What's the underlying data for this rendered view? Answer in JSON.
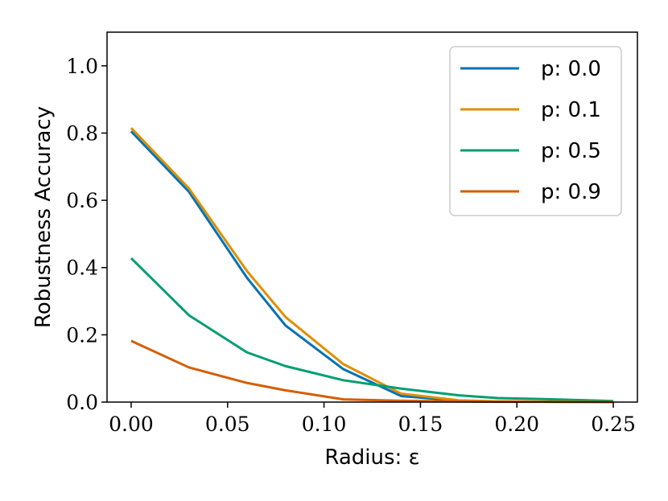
{
  "chart_data": {
    "type": "line",
    "title": "",
    "xlabel": "Radius: ε",
    "ylabel": "Robustness Accuracy",
    "xlim": [
      -0.0125,
      0.2625
    ],
    "ylim": [
      0.0,
      1.1
    ],
    "xticks": [
      0.0,
      0.05,
      0.1,
      0.15,
      0.2,
      0.25
    ],
    "xtick_labels": [
      "0.00",
      "0.05",
      "0.10",
      "0.15",
      "0.20",
      "0.25"
    ],
    "yticks": [
      0.0,
      0.2,
      0.4,
      0.6,
      0.8,
      1.0
    ],
    "ytick_labels": [
      "0.0",
      "0.2",
      "0.4",
      "0.6",
      "0.8",
      "1.0"
    ],
    "grid": false,
    "legend": "top-right",
    "x": [
      0.0,
      0.03,
      0.06,
      0.08,
      0.11,
      0.14,
      0.17,
      0.19,
      0.22,
      0.25
    ],
    "series": [
      {
        "name": "p: 0.0",
        "color": "#0173b2",
        "values": [
          0.805,
          0.625,
          0.37,
          0.228,
          0.098,
          0.018,
          0.004,
          0.002,
          0.001,
          0.001
        ]
      },
      {
        "name": "p: 0.1",
        "color": "#de8f05",
        "values": [
          0.815,
          0.635,
          0.39,
          0.253,
          0.113,
          0.025,
          0.005,
          0.002,
          0.001,
          0.001
        ]
      },
      {
        "name": "p: 0.5",
        "color": "#029e73",
        "values": [
          0.428,
          0.258,
          0.148,
          0.107,
          0.065,
          0.04,
          0.02,
          0.012,
          0.008,
          0.003
        ]
      },
      {
        "name": "p: 0.9",
        "color": "#d55e00",
        "values": [
          0.182,
          0.103,
          0.057,
          0.035,
          0.008,
          0.004,
          0.002,
          0.001,
          0.001,
          0.0
        ]
      }
    ]
  }
}
